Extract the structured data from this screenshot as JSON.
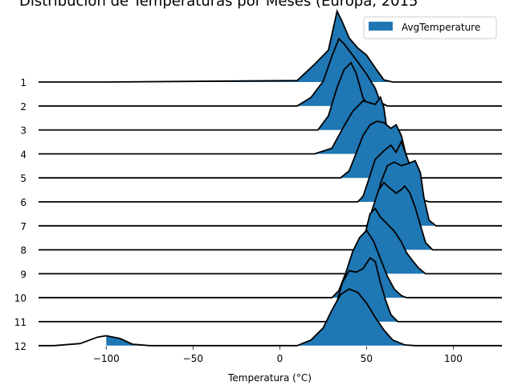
{
  "chart_data": {
    "type": "area",
    "subtype": "ridgeline",
    "title": "Distribución de Temperaturas por Meses (Europa, 2015",
    "xlabel": "Temperatura (°C)",
    "ylabel": "",
    "xlim": [
      -139,
      128
    ],
    "x_ticks": [
      -100,
      -50,
      0,
      50,
      100
    ],
    "x_tick_labels": [
      "−100",
      "−50",
      "0",
      "50",
      "100"
    ],
    "legend": {
      "label": "AvgTemperature",
      "placement": "top-right"
    },
    "fill_color": "#1f77b4",
    "line_color": "#000000",
    "grid": false,
    "series": [
      {
        "name": "1",
        "min": -100,
        "max": 76,
        "points": [
          [
            -100,
            0.0
          ],
          [
            10,
            0.02
          ],
          [
            20,
            0.25
          ],
          [
            28,
            0.45
          ],
          [
            33,
            1.0
          ],
          [
            36,
            0.85
          ],
          [
            40,
            0.62
          ],
          [
            45,
            0.48
          ],
          [
            50,
            0.38
          ],
          [
            55,
            0.2
          ],
          [
            60,
            0.03
          ],
          [
            65,
            0.0
          ]
        ]
      },
      {
        "name": "2",
        "min": -100,
        "max": 78,
        "points": [
          [
            10,
            0.0
          ],
          [
            18,
            0.12
          ],
          [
            25,
            0.35
          ],
          [
            30,
            0.7
          ],
          [
            34,
            0.95
          ],
          [
            37,
            0.88
          ],
          [
            41,
            0.75
          ],
          [
            45,
            0.62
          ],
          [
            50,
            0.45
          ],
          [
            55,
            0.25
          ],
          [
            58,
            0.05
          ],
          [
            62,
            0.0
          ]
        ]
      },
      {
        "name": "3",
        "min": -100,
        "max": 80,
        "points": [
          [
            22,
            0.0
          ],
          [
            28,
            0.2
          ],
          [
            33,
            0.6
          ],
          [
            37,
            0.85
          ],
          [
            41,
            0.95
          ],
          [
            44,
            0.8
          ],
          [
            48,
            0.45
          ],
          [
            51,
            0.35
          ],
          [
            55,
            0.3
          ],
          [
            58,
            0.15
          ],
          [
            61,
            0.03
          ],
          [
            64,
            0.0
          ]
        ]
      },
      {
        "name": "4",
        "min": -100,
        "max": 85,
        "points": [
          [
            20,
            0.0
          ],
          [
            30,
            0.08
          ],
          [
            36,
            0.35
          ],
          [
            42,
            0.6
          ],
          [
            48,
            0.75
          ],
          [
            52,
            0.72
          ],
          [
            55,
            0.7
          ],
          [
            58,
            0.8
          ],
          [
            60,
            0.65
          ],
          [
            62,
            0.3
          ],
          [
            65,
            0.05
          ],
          [
            70,
            0.0
          ]
        ]
      },
      {
        "name": "5",
        "min": -100,
        "max": 90,
        "points": [
          [
            35,
            0.0
          ],
          [
            40,
            0.1
          ],
          [
            44,
            0.35
          ],
          [
            48,
            0.6
          ],
          [
            52,
            0.75
          ],
          [
            56,
            0.8
          ],
          [
            60,
            0.78
          ],
          [
            64,
            0.7
          ],
          [
            67,
            0.75
          ],
          [
            70,
            0.6
          ],
          [
            73,
            0.3
          ],
          [
            76,
            0.05
          ],
          [
            80,
            0.0
          ]
        ]
      },
      {
        "name": "6",
        "min": -100,
        "max": 92,
        "points": [
          [
            45,
            0.0
          ],
          [
            48,
            0.08
          ],
          [
            51,
            0.3
          ],
          [
            55,
            0.6
          ],
          [
            60,
            0.72
          ],
          [
            64,
            0.8
          ],
          [
            67,
            0.7
          ],
          [
            70,
            0.85
          ],
          [
            73,
            0.65
          ],
          [
            76,
            0.45
          ],
          [
            78,
            0.2
          ],
          [
            82,
            0.03
          ],
          [
            86,
            0.0
          ]
        ]
      },
      {
        "name": "7",
        "min": -100,
        "max": 95,
        "points": [
          [
            50,
            0.0
          ],
          [
            55,
            0.2
          ],
          [
            58,
            0.6
          ],
          [
            62,
            0.85
          ],
          [
            66,
            0.9
          ],
          [
            70,
            0.85
          ],
          [
            74,
            0.88
          ],
          [
            78,
            0.92
          ],
          [
            81,
            0.75
          ],
          [
            83,
            0.4
          ],
          [
            86,
            0.08
          ],
          [
            90,
            0.0
          ]
        ]
      },
      {
        "name": "8",
        "min": -100,
        "max": 95,
        "points": [
          [
            47,
            0.0
          ],
          [
            50,
            0.2
          ],
          [
            53,
            0.55
          ],
          [
            57,
            0.85
          ],
          [
            60,
            0.95
          ],
          [
            63,
            0.88
          ],
          [
            67,
            0.8
          ],
          [
            70,
            0.85
          ],
          [
            72,
            0.9
          ],
          [
            75,
            0.8
          ],
          [
            78,
            0.6
          ],
          [
            81,
            0.35
          ],
          [
            84,
            0.1
          ],
          [
            88,
            0.0
          ]
        ]
      },
      {
        "name": "9",
        "min": -100,
        "max": 90,
        "points": [
          [
            42,
            0.0
          ],
          [
            46,
            0.2
          ],
          [
            49,
            0.55
          ],
          [
            52,
            0.85
          ],
          [
            55,
            0.92
          ],
          [
            58,
            0.8
          ],
          [
            62,
            0.7
          ],
          [
            66,
            0.6
          ],
          [
            70,
            0.45
          ],
          [
            73,
            0.3
          ],
          [
            76,
            0.2
          ],
          [
            80,
            0.08
          ],
          [
            84,
            0.0
          ]
        ]
      },
      {
        "name": "10",
        "min": -100,
        "max": 85,
        "points": [
          [
            30,
            0.0
          ],
          [
            34,
            0.1
          ],
          [
            38,
            0.35
          ],
          [
            42,
            0.65
          ],
          [
            46,
            0.85
          ],
          [
            50,
            0.95
          ],
          [
            54,
            0.8
          ],
          [
            58,
            0.55
          ],
          [
            62,
            0.3
          ],
          [
            66,
            0.12
          ],
          [
            70,
            0.03
          ],
          [
            73,
            0.0
          ]
        ]
      },
      {
        "name": "11",
        "min": -100,
        "max": 80,
        "points": [
          [
            28,
            0.0
          ],
          [
            32,
            0.2
          ],
          [
            36,
            0.55
          ],
          [
            40,
            0.72
          ],
          [
            44,
            0.7
          ],
          [
            48,
            0.75
          ],
          [
            52,
            0.9
          ],
          [
            55,
            0.85
          ],
          [
            58,
            0.55
          ],
          [
            61,
            0.3
          ],
          [
            64,
            0.1
          ],
          [
            68,
            0.0
          ]
        ]
      },
      {
        "name": "12",
        "min": -100,
        "max": 80,
        "points": [
          [
            -130,
            0.0
          ],
          [
            -115,
            0.03
          ],
          [
            -105,
            0.12
          ],
          [
            -100,
            0.14
          ],
          [
            -92,
            0.1
          ],
          [
            -85,
            0.02
          ],
          [
            -75,
            0.0
          ],
          [
            10,
            0.0
          ],
          [
            18,
            0.08
          ],
          [
            25,
            0.25
          ],
          [
            30,
            0.5
          ],
          [
            35,
            0.72
          ],
          [
            40,
            0.8
          ],
          [
            45,
            0.75
          ],
          [
            50,
            0.6
          ],
          [
            55,
            0.4
          ],
          [
            60,
            0.22
          ],
          [
            65,
            0.08
          ],
          [
            72,
            0.01
          ],
          [
            78,
            0.0
          ]
        ]
      }
    ]
  }
}
